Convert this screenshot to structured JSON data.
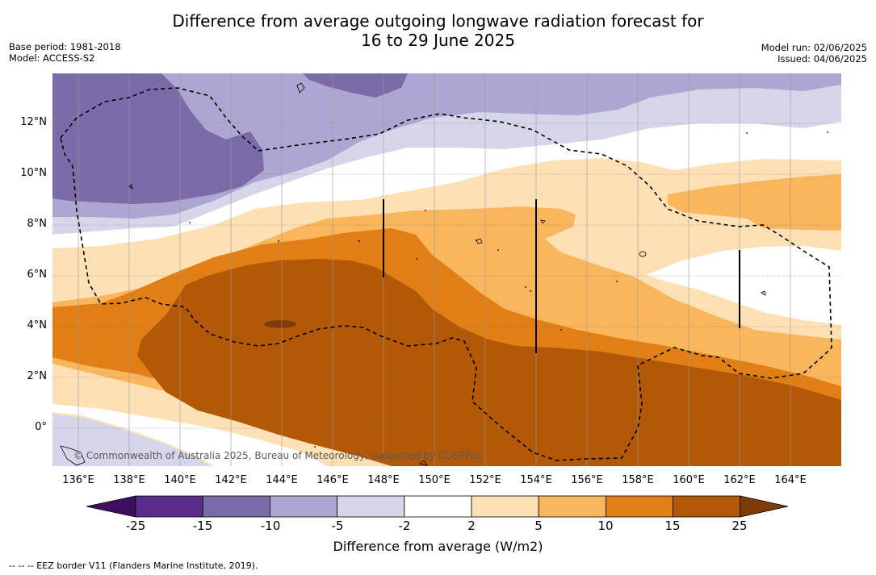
{
  "title_line1": "Difference from average outgoing longwave radiation forecast for",
  "title_line2": "16 to 29 June 2025",
  "meta_left": {
    "base_period": "Base period: 1981-2018",
    "model": "Model: ACCESS-S2"
  },
  "meta_right": {
    "model_run": "Model run: 02/06/2025",
    "issued": "Issued: 04/06/2025"
  },
  "latitude_labels": [
    "12°N",
    "10°N",
    "8°N",
    "6°N",
    "4°N",
    "2°N",
    "0°"
  ],
  "longitude_labels": [
    "136°E",
    "138°E",
    "140°E",
    "142°E",
    "144°E",
    "146°E",
    "148°E",
    "150°E",
    "152°E",
    "154°E",
    "156°E",
    "158°E",
    "160°E",
    "162°E",
    "164°E"
  ],
  "copyright": "© Commonwealth of Australia 2025, Bureau of Meteorology, supported by COSPPac",
  "colorbar": {
    "ticks": [
      "-25",
      "-15",
      "-10",
      "-5",
      "-2",
      "2",
      "5",
      "10",
      "15",
      "25"
    ],
    "colors": [
      "#5a2d8a",
      "#7b6ca9",
      "#ada6d0",
      "#d6d6ea",
      "#ffffff",
      "#fde1b5",
      "#f9b65c",
      "#e17f16",
      "#b35806"
    ],
    "under_color": "#3d0f5e",
    "over_color": "#7f3b08",
    "label": "Difference from average (W/m2)"
  },
  "legend_note": "--  --  -- EEZ border V11 (Flanders Marine Institute, 2019)."
}
